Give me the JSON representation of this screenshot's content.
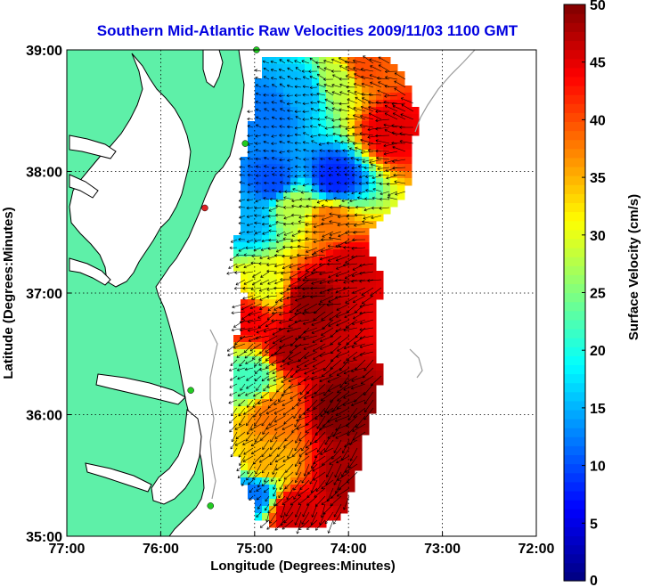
{
  "title": "Southern Mid-Atlantic Raw Velocities 2009/11/03 1100 GMT",
  "xlabel": "Longitude (Degrees:Minutes)",
  "ylabel": "Latitude (Degrees:Minutes)",
  "colorbar_label": "Surface Velocity (cm/s)",
  "colors": {
    "title": "#0000e0",
    "land": "#5ef0a8",
    "coast_line": "#000000",
    "bathymetry": "#9a9a9a",
    "station_green": "#22cc22",
    "station_red": "#dd2222"
  },
  "chart_data": {
    "type": "heatmap",
    "title": "Southern Mid-Atlantic Raw Velocities 2009/11/03 1100 GMT",
    "xlabel": "Longitude (Degrees:Minutes)",
    "ylabel": "Latitude (Degrees:Minutes)",
    "xlim": [
      -77,
      -72
    ],
    "ylim": [
      35,
      39
    ],
    "x_ticks": [
      "77:00",
      "76:00",
      "75:00",
      "74:00",
      "73:00",
      "72:00"
    ],
    "x_tick_values": [
      -77,
      -76,
      -75,
      -74,
      -73,
      -72
    ],
    "y_ticks": [
      "39:00",
      "38:00",
      "37:00",
      "36:00",
      "35:00"
    ],
    "y_tick_values": [
      39,
      38,
      37,
      36,
      35
    ],
    "grid": true,
    "colorbar": {
      "label": "Surface Velocity (cm/s)",
      "range": [
        0,
        50
      ],
      "ticks": [
        "50",
        "45",
        "40",
        "35",
        "30",
        "25",
        "20",
        "15",
        "10",
        "5",
        "0"
      ],
      "tick_values": [
        50,
        45,
        40,
        35,
        30,
        25,
        20,
        15,
        10,
        5,
        0
      ],
      "colormap": "jet"
    },
    "stations": [
      {
        "lon": -74.98,
        "lat": 39.0,
        "color": "green"
      },
      {
        "lon": -75.1,
        "lat": 38.23,
        "color": "green"
      },
      {
        "lon": -75.53,
        "lat": 37.7,
        "color": "red"
      },
      {
        "lon": -75.68,
        "lat": 36.2,
        "color": "green"
      },
      {
        "lon": -75.47,
        "lat": 35.25,
        "color": "green"
      }
    ],
    "speed_field_samples": [
      {
        "lon": -74.8,
        "lat": 38.5,
        "speed": 12
      },
      {
        "lon": -74.5,
        "lat": 38.65,
        "speed": 15
      },
      {
        "lon": -74.1,
        "lat": 38.75,
        "speed": 28
      },
      {
        "lon": -73.85,
        "lat": 38.85,
        "speed": 40
      },
      {
        "lon": -73.55,
        "lat": 38.35,
        "speed": 45
      },
      {
        "lon": -74.15,
        "lat": 37.93,
        "speed": 8
      },
      {
        "lon": -74.8,
        "lat": 37.9,
        "speed": 10
      },
      {
        "lon": -75.05,
        "lat": 37.6,
        "speed": 15
      },
      {
        "lon": -74.6,
        "lat": 37.7,
        "speed": 28
      },
      {
        "lon": -74.2,
        "lat": 37.6,
        "speed": 38
      },
      {
        "lon": -74.0,
        "lat": 37.2,
        "speed": 46
      },
      {
        "lon": -74.4,
        "lat": 36.95,
        "speed": 49
      },
      {
        "lon": -74.9,
        "lat": 37.05,
        "speed": 30
      },
      {
        "lon": -75.05,
        "lat": 36.8,
        "speed": 44
      },
      {
        "lon": -74.6,
        "lat": 36.55,
        "speed": 48
      },
      {
        "lon": -75.05,
        "lat": 36.3,
        "speed": 22
      },
      {
        "lon": -74.8,
        "lat": 36.0,
        "speed": 38
      },
      {
        "lon": -74.1,
        "lat": 36.05,
        "speed": 50
      },
      {
        "lon": -74.9,
        "lat": 35.6,
        "speed": 35
      },
      {
        "lon": -75.0,
        "lat": 35.35,
        "speed": 12
      },
      {
        "lon": -74.6,
        "lat": 35.2,
        "speed": 46
      },
      {
        "lon": -74.0,
        "lat": 35.5,
        "speed": 48
      }
    ]
  }
}
